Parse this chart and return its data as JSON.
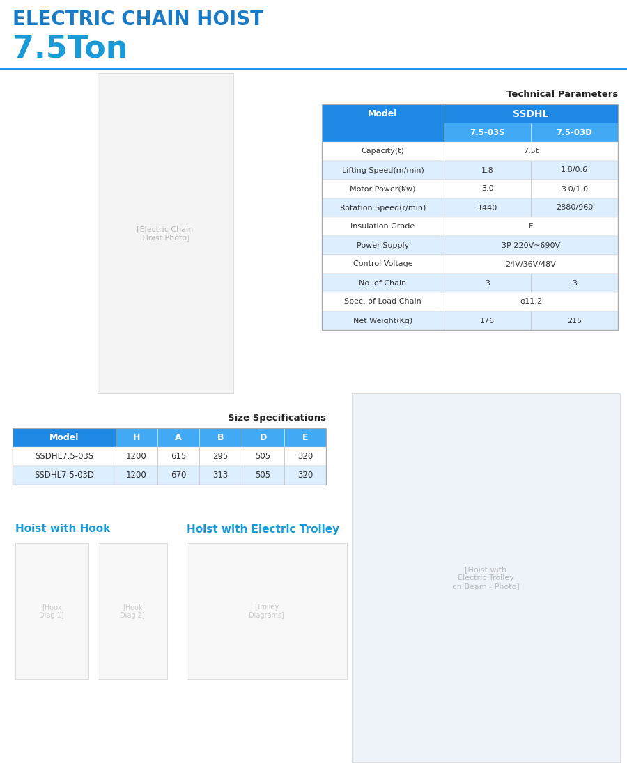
{
  "title1": "ELECTRIC CHAIN HOIST",
  "title2": "7.5Ton",
  "title1_color": "#1a7ac4",
  "title2_color": "#1a9ad6",
  "bg_color": "#ffffff",
  "divider_color": "#2196f3",
  "tech_title": "Technical Parameters",
  "tech_header_bg": "#1e88e5",
  "tech_subheader_bg": "#42aaf5",
  "tech_row_odd_bg": "#ffffff",
  "tech_row_even_bg": "#ddeeff",
  "tech_model_label": "Model",
  "tech_model_span": "SSDHL",
  "tech_col1": "7.5-03S",
  "tech_col2": "7.5-03D",
  "tech_rows": [
    [
      "Capacity(t)",
      "7.5t",
      ""
    ],
    [
      "Lifting Speed(m/min)",
      "1.8",
      "1.8/0.6"
    ],
    [
      "Motor Power(Kw)",
      "3.0",
      "3.0/1.0"
    ],
    [
      "Rotation Speed(r/min)",
      "1440",
      "2880/960"
    ],
    [
      "Insulation Grade",
      "F",
      ""
    ],
    [
      "Power Supply",
      "3P 220V~690V",
      ""
    ],
    [
      "Control Voltage",
      "24V/36V/48V",
      ""
    ],
    [
      "No. of Chain",
      "3",
      "3"
    ],
    [
      "Spec. of Load Chain",
      "φ11.2",
      ""
    ],
    [
      "Net Weight(Kg)",
      "176",
      "215"
    ]
  ],
  "size_title": "Size Specifications",
  "size_headers": [
    "Model",
    "H",
    "A",
    "B",
    "D",
    "E"
  ],
  "size_rows": [
    [
      "SSDHL7.5-03S",
      "1200",
      "615",
      "295",
      "505",
      "320"
    ],
    [
      "SSDHL7.5-03D",
      "1200",
      "670",
      "313",
      "505",
      "320"
    ]
  ],
  "hook_label": "Hoist with Hook",
  "trolley_label": "Hoist with Electric Trolley",
  "section_label_color": "#1a9ad6"
}
